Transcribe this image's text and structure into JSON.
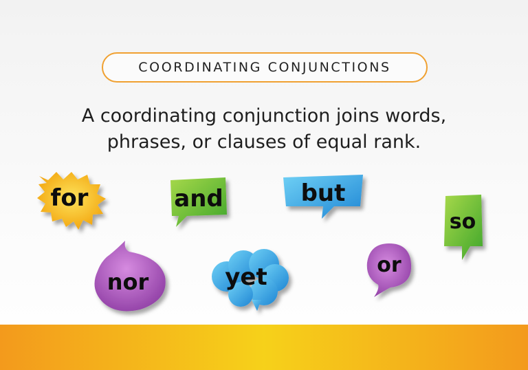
{
  "title": "COORDINATING CONJUNCTIONS",
  "description": {
    "line1": "A coordinating conjunction joins words,",
    "line2": "phrases, or clauses of equal rank."
  },
  "conjunctions": {
    "for": "for",
    "and": "and",
    "but": "but",
    "so": "so",
    "nor": "nor",
    "yet": "yet",
    "or": "or"
  },
  "colors": {
    "accent_border": "#f0a030",
    "yellow": "#f7b614",
    "green": "#6cbf2e",
    "blue": "#3aa7e6",
    "purple": "#a855b5",
    "band_orange": "#f39a1c",
    "band_yellow": "#f6d11a"
  }
}
